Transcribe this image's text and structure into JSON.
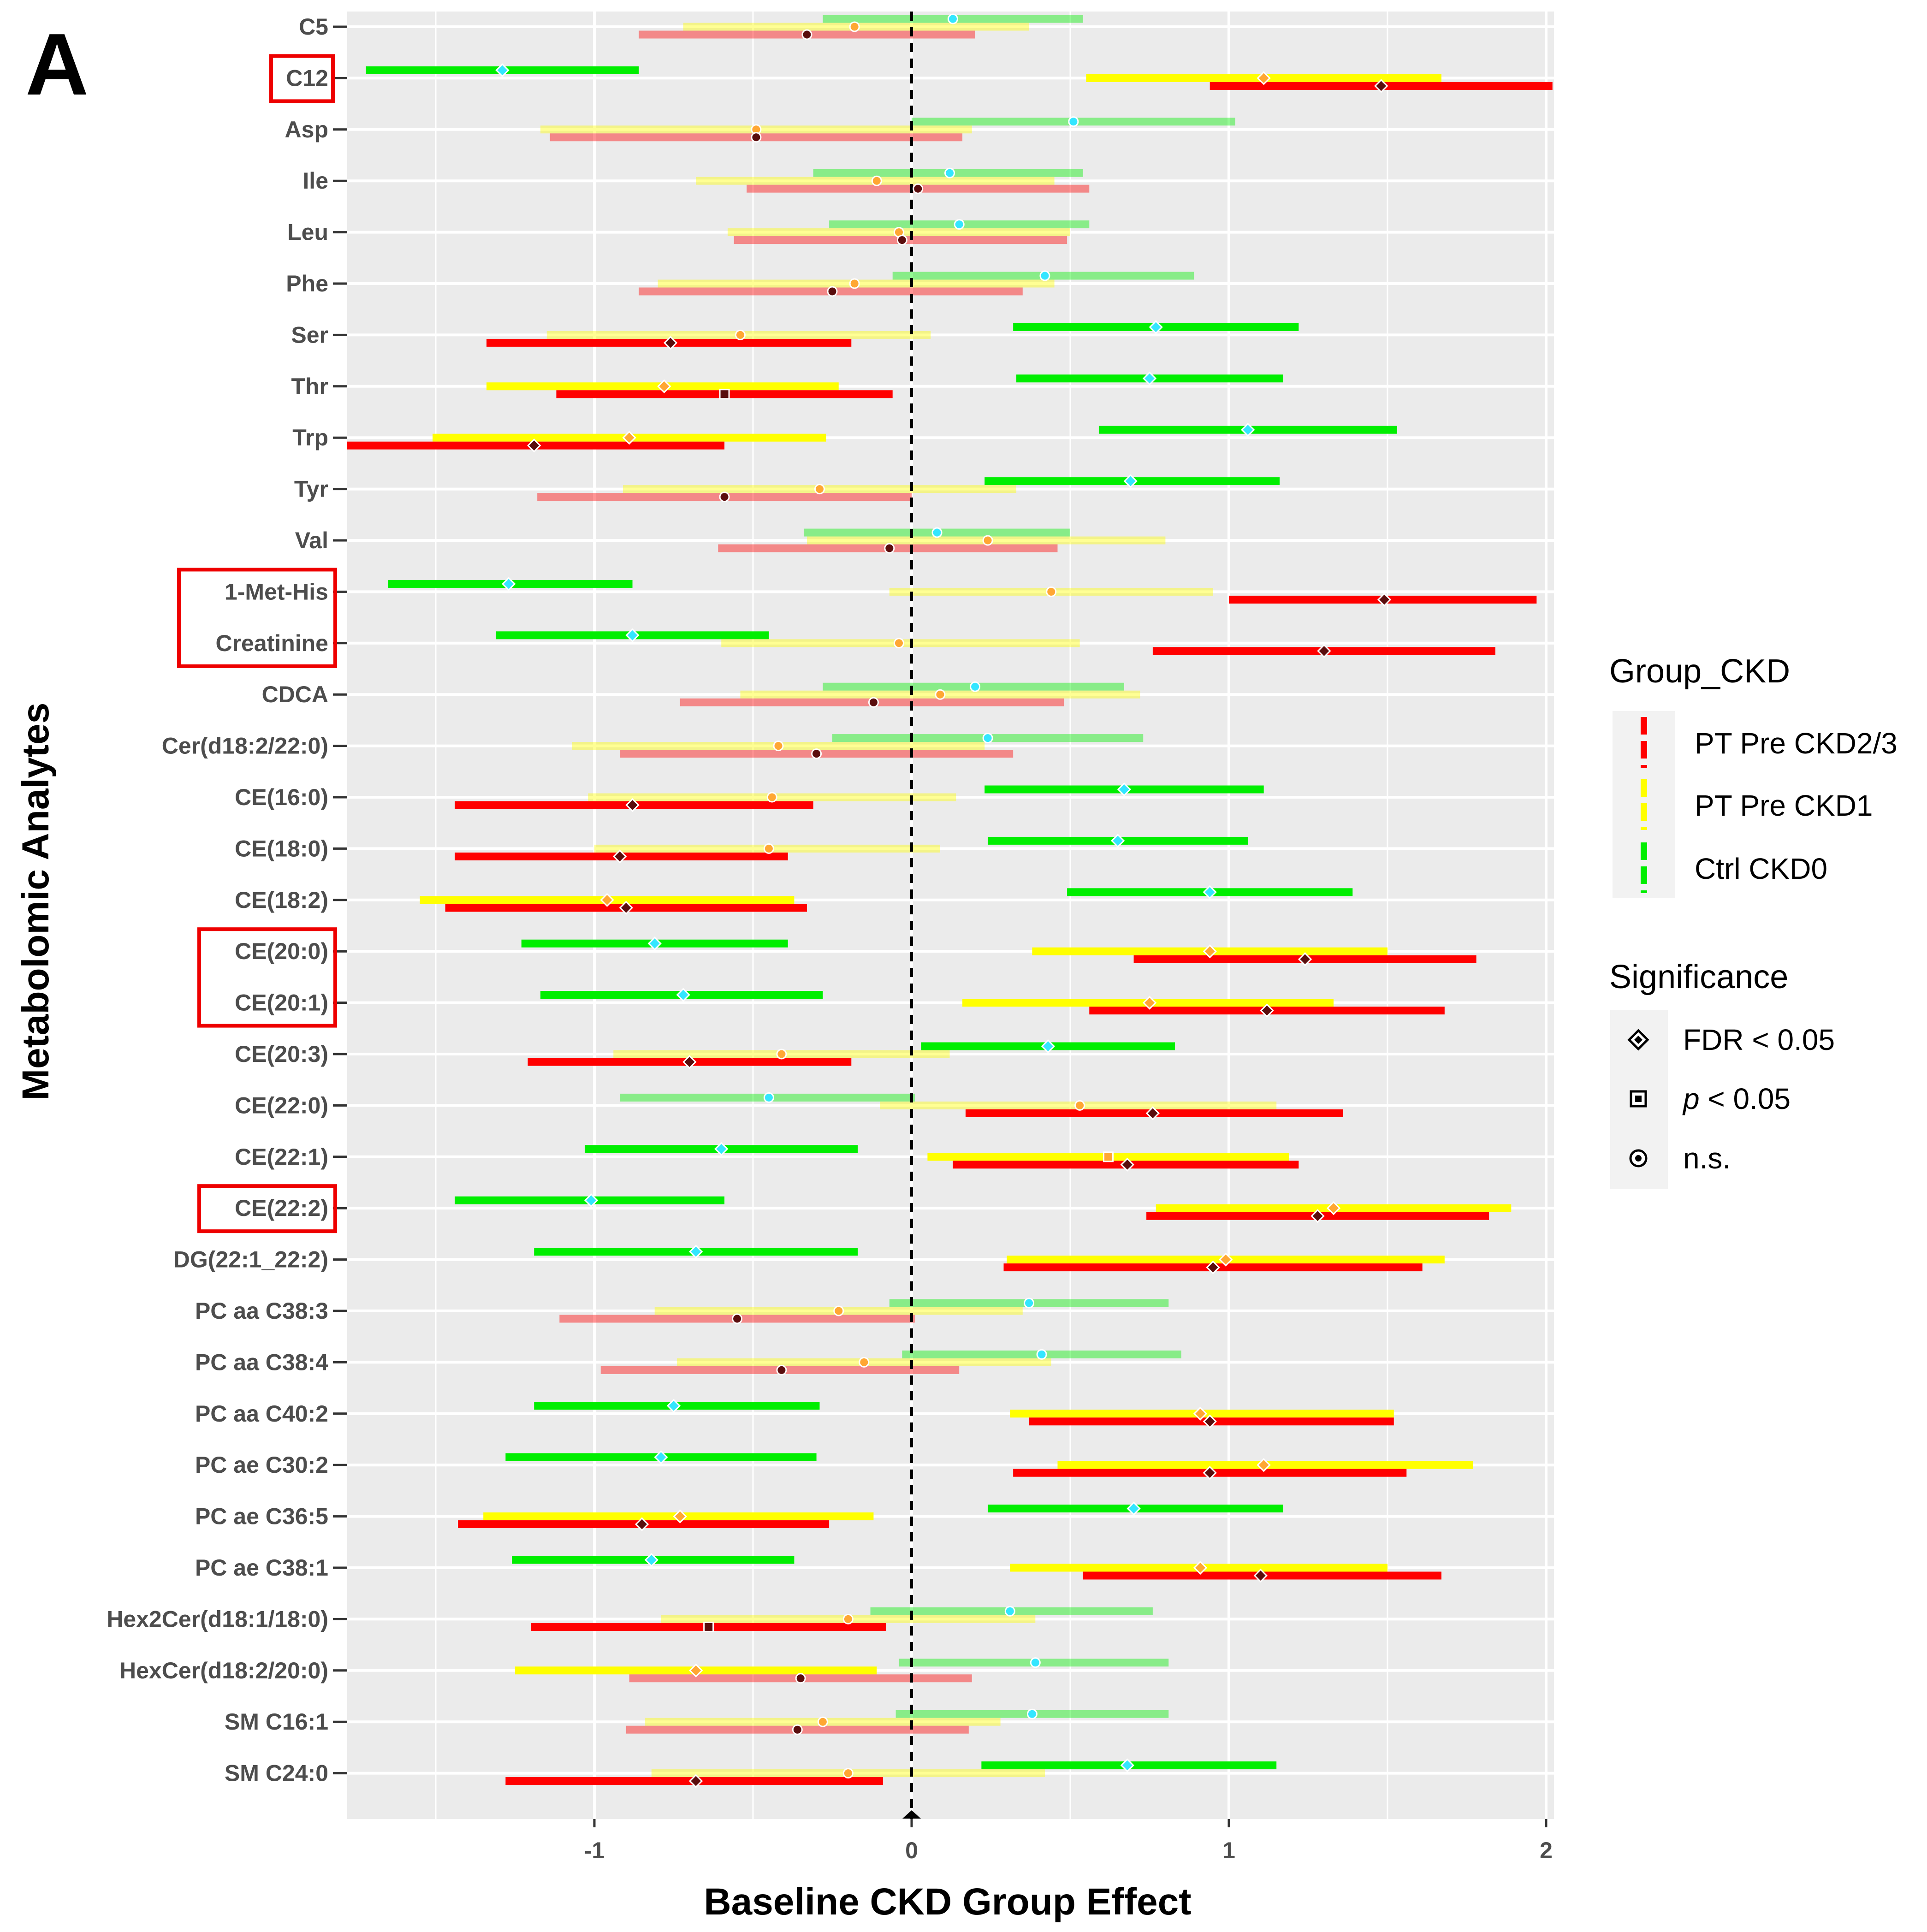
{
  "panel_label": "A",
  "colors": {
    "panel_bg": "#ebebeb",
    "grid": "#ffffff",
    "zero_line": "#000000",
    "highlight_box": "#ee0000",
    "legend_key_bg": "#f2f2f2"
  },
  "legend": {
    "group_title": "Group_CKD",
    "groups": [
      {
        "name": "PT Pre CKD2/3",
        "color": "#ff0000",
        "key": "ckd23"
      },
      {
        "name": "PT Pre CKD1",
        "color": "#ffff00",
        "key": "ckd1"
      },
      {
        "name": "Ctrl CKD0",
        "color": "#00ee00",
        "key": "ctrl"
      }
    ],
    "sig_title": "Significance",
    "sig_levels": [
      {
        "label": "FDR < 0.05",
        "shape": "diamond-icon"
      },
      {
        "label_italic": "p",
        "label_rest": " < 0.05",
        "shape": "square-icon"
      },
      {
        "label": "n.s.",
        "shape": "circle-icon"
      }
    ]
  },
  "chart_data": {
    "type": "forest",
    "title": "",
    "xlabel": "Baseline CKD Group Effect",
    "ylabel": "Metabolomic Analytes",
    "xlim": [
      -1.78,
      2.02
    ],
    "xticks": [
      -1,
      0,
      1,
      2
    ],
    "xtick_labels": [
      "-1",
      "0",
      "1",
      "2"
    ],
    "reference_line": 0,
    "highlighted_groups": [
      [
        "C12"
      ],
      [
        "1-Met-His",
        "Creatinine"
      ],
      [
        "CE(20:0)",
        "CE(20:1)"
      ],
      [
        "CE(22:2)"
      ]
    ],
    "analytes": [
      {
        "name": "C5",
        "ctrl": {
          "est": 0.13,
          "lo": -0.28,
          "hi": 0.54,
          "sig": "ns"
        },
        "ckd1": {
          "est": -0.18,
          "lo": -0.72,
          "hi": 0.37,
          "sig": "ns"
        },
        "ckd23": {
          "est": -0.33,
          "lo": -0.86,
          "hi": 0.2,
          "sig": "ns"
        }
      },
      {
        "name": "C12",
        "ctrl": {
          "est": -1.29,
          "lo": -1.72,
          "hi": -0.86,
          "sig": "fdr"
        },
        "ckd1": {
          "est": 1.11,
          "lo": 0.55,
          "hi": 1.67,
          "sig": "fdr"
        },
        "ckd23": {
          "est": 1.48,
          "lo": 0.94,
          "hi": 2.02,
          "sig": "fdr"
        }
      },
      {
        "name": "Asp",
        "ctrl": {
          "est": 0.51,
          "lo": 0.0,
          "hi": 1.02,
          "sig": "ns"
        },
        "ckd1": {
          "est": -0.49,
          "lo": -1.17,
          "hi": 0.19,
          "sig": "ns"
        },
        "ckd23": {
          "est": -0.49,
          "lo": -1.14,
          "hi": 0.16,
          "sig": "ns"
        }
      },
      {
        "name": "Ile",
        "ctrl": {
          "est": 0.12,
          "lo": -0.31,
          "hi": 0.54,
          "sig": "ns"
        },
        "ckd1": {
          "est": -0.11,
          "lo": -0.68,
          "hi": 0.45,
          "sig": "ns"
        },
        "ckd23": {
          "est": 0.02,
          "lo": -0.52,
          "hi": 0.56,
          "sig": "ns"
        }
      },
      {
        "name": "Leu",
        "ctrl": {
          "est": 0.15,
          "lo": -0.26,
          "hi": 0.56,
          "sig": "ns"
        },
        "ckd1": {
          "est": -0.04,
          "lo": -0.58,
          "hi": 0.5,
          "sig": "ns"
        },
        "ckd23": {
          "est": -0.03,
          "lo": -0.56,
          "hi": 0.49,
          "sig": "ns"
        }
      },
      {
        "name": "Phe",
        "ctrl": {
          "est": 0.42,
          "lo": -0.06,
          "hi": 0.89,
          "sig": "ns"
        },
        "ckd1": {
          "est": -0.18,
          "lo": -0.8,
          "hi": 0.45,
          "sig": "ns"
        },
        "ckd23": {
          "est": -0.25,
          "lo": -0.86,
          "hi": 0.35,
          "sig": "ns"
        }
      },
      {
        "name": "Ser",
        "ctrl": {
          "est": 0.77,
          "lo": 0.32,
          "hi": 1.22,
          "sig": "fdr"
        },
        "ckd1": {
          "est": -0.54,
          "lo": -1.15,
          "hi": 0.06,
          "sig": "ns"
        },
        "ckd23": {
          "est": -0.76,
          "lo": -1.34,
          "hi": -0.19,
          "sig": "fdr"
        }
      },
      {
        "name": "Thr",
        "ctrl": {
          "est": 0.75,
          "lo": 0.33,
          "hi": 1.17,
          "sig": "fdr"
        },
        "ckd1": {
          "est": -0.78,
          "lo": -1.34,
          "hi": -0.23,
          "sig": "fdr"
        },
        "ckd23": {
          "est": -0.59,
          "lo": -1.12,
          "hi": -0.06,
          "sig": "p"
        }
      },
      {
        "name": "Trp",
        "ctrl": {
          "est": 1.06,
          "lo": 0.59,
          "hi": 1.53,
          "sig": "fdr"
        },
        "ckd1": {
          "est": -0.89,
          "lo": -1.51,
          "hi": -0.27,
          "sig": "fdr"
        },
        "ckd23": {
          "est": -1.19,
          "lo": -1.78,
          "hi": -0.59,
          "sig": "fdr"
        }
      },
      {
        "name": "Tyr",
        "ctrl": {
          "est": 0.69,
          "lo": 0.23,
          "hi": 1.16,
          "sig": "fdr"
        },
        "ckd1": {
          "est": -0.29,
          "lo": -0.91,
          "hi": 0.33,
          "sig": "ns"
        },
        "ckd23": {
          "est": -0.59,
          "lo": -1.18,
          "hi": 0.0,
          "sig": "ns"
        }
      },
      {
        "name": "Val",
        "ctrl": {
          "est": 0.08,
          "lo": -0.34,
          "hi": 0.5,
          "sig": "ns"
        },
        "ckd1": {
          "est": 0.24,
          "lo": -0.33,
          "hi": 0.8,
          "sig": "ns"
        },
        "ckd23": {
          "est": -0.07,
          "lo": -0.61,
          "hi": 0.46,
          "sig": "ns"
        }
      },
      {
        "name": "1-Met-His",
        "ctrl": {
          "est": -1.27,
          "lo": -1.65,
          "hi": -0.88,
          "sig": "fdr"
        },
        "ckd1": {
          "est": 0.44,
          "lo": -0.07,
          "hi": 0.95,
          "sig": "ns"
        },
        "ckd23": {
          "est": 1.49,
          "lo": 1.0,
          "hi": 1.97,
          "sig": "fdr"
        }
      },
      {
        "name": "Creatinine",
        "ctrl": {
          "est": -0.88,
          "lo": -1.31,
          "hi": -0.45,
          "sig": "fdr"
        },
        "ckd1": {
          "est": -0.04,
          "lo": -0.6,
          "hi": 0.53,
          "sig": "ns"
        },
        "ckd23": {
          "est": 1.3,
          "lo": 0.76,
          "hi": 1.84,
          "sig": "fdr"
        }
      },
      {
        "name": "CDCA",
        "ctrl": {
          "est": 0.2,
          "lo": -0.28,
          "hi": 0.67,
          "sig": "ns"
        },
        "ckd1": {
          "est": 0.09,
          "lo": -0.54,
          "hi": 0.72,
          "sig": "ns"
        },
        "ckd23": {
          "est": -0.12,
          "lo": -0.73,
          "hi": 0.48,
          "sig": "ns"
        }
      },
      {
        "name": "Cer(d18:2/22:0)",
        "ctrl": {
          "est": 0.24,
          "lo": -0.25,
          "hi": 0.73,
          "sig": "ns"
        },
        "ckd1": {
          "est": -0.42,
          "lo": -1.07,
          "hi": 0.23,
          "sig": "ns"
        },
        "ckd23": {
          "est": -0.3,
          "lo": -0.92,
          "hi": 0.32,
          "sig": "ns"
        }
      },
      {
        "name": "CE(16:0)",
        "ctrl": {
          "est": 0.67,
          "lo": 0.23,
          "hi": 1.11,
          "sig": "fdr"
        },
        "ckd1": {
          "est": -0.44,
          "lo": -1.02,
          "hi": 0.14,
          "sig": "ns"
        },
        "ckd23": {
          "est": -0.88,
          "lo": -1.44,
          "hi": -0.31,
          "sig": "fdr"
        }
      },
      {
        "name": "CE(18:0)",
        "ctrl": {
          "est": 0.65,
          "lo": 0.24,
          "hi": 1.06,
          "sig": "fdr"
        },
        "ckd1": {
          "est": -0.45,
          "lo": -1.0,
          "hi": 0.09,
          "sig": "ns"
        },
        "ckd23": {
          "est": -0.92,
          "lo": -1.44,
          "hi": -0.39,
          "sig": "fdr"
        }
      },
      {
        "name": "CE(18:2)",
        "ctrl": {
          "est": 0.94,
          "lo": 0.49,
          "hi": 1.39,
          "sig": "fdr"
        },
        "ckd1": {
          "est": -0.96,
          "lo": -1.55,
          "hi": -0.37,
          "sig": "fdr"
        },
        "ckd23": {
          "est": -0.9,
          "lo": -1.47,
          "hi": -0.33,
          "sig": "fdr"
        }
      },
      {
        "name": "CE(20:0)",
        "ctrl": {
          "est": -0.81,
          "lo": -1.23,
          "hi": -0.39,
          "sig": "fdr"
        },
        "ckd1": {
          "est": 0.94,
          "lo": 0.38,
          "hi": 1.5,
          "sig": "fdr"
        },
        "ckd23": {
          "est": 1.24,
          "lo": 0.7,
          "hi": 1.78,
          "sig": "fdr"
        }
      },
      {
        "name": "CE(20:1)",
        "ctrl": {
          "est": -0.72,
          "lo": -1.17,
          "hi": -0.28,
          "sig": "fdr"
        },
        "ckd1": {
          "est": 0.75,
          "lo": 0.16,
          "hi": 1.33,
          "sig": "fdr"
        },
        "ckd23": {
          "est": 1.12,
          "lo": 0.56,
          "hi": 1.68,
          "sig": "fdr"
        }
      },
      {
        "name": "CE(20:3)",
        "ctrl": {
          "est": 0.43,
          "lo": 0.03,
          "hi": 0.83,
          "sig": "fdr"
        },
        "ckd1": {
          "est": -0.41,
          "lo": -0.94,
          "hi": 0.12,
          "sig": "ns"
        },
        "ckd23": {
          "est": -0.7,
          "lo": -1.21,
          "hi": -0.19,
          "sig": "fdr"
        }
      },
      {
        "name": "CE(22:0)",
        "ctrl": {
          "est": -0.45,
          "lo": -0.92,
          "hi": 0.01,
          "sig": "ns"
        },
        "ckd1": {
          "est": 0.53,
          "lo": -0.1,
          "hi": 1.15,
          "sig": "ns"
        },
        "ckd23": {
          "est": 0.76,
          "lo": 0.17,
          "hi": 1.36,
          "sig": "fdr"
        }
      },
      {
        "name": "CE(22:1)",
        "ctrl": {
          "est": -0.6,
          "lo": -1.03,
          "hi": -0.17,
          "sig": "fdr"
        },
        "ckd1": {
          "est": 0.62,
          "lo": 0.05,
          "hi": 1.19,
          "sig": "p"
        },
        "ckd23": {
          "est": 0.68,
          "lo": 0.13,
          "hi": 1.22,
          "sig": "fdr"
        }
      },
      {
        "name": "CE(22:2)",
        "ctrl": {
          "est": -1.01,
          "lo": -1.44,
          "hi": -0.59,
          "sig": "fdr"
        },
        "ckd1": {
          "est": 1.33,
          "lo": 0.77,
          "hi": 1.89,
          "sig": "fdr"
        },
        "ckd23": {
          "est": 1.28,
          "lo": 0.74,
          "hi": 1.82,
          "sig": "fdr"
        }
      },
      {
        "name": "DG(22:1_22:2)",
        "ctrl": {
          "est": -0.68,
          "lo": -1.19,
          "hi": -0.17,
          "sig": "fdr"
        },
        "ckd1": {
          "est": 0.99,
          "lo": 0.3,
          "hi": 1.68,
          "sig": "fdr"
        },
        "ckd23": {
          "est": 0.95,
          "lo": 0.29,
          "hi": 1.61,
          "sig": "fdr"
        }
      },
      {
        "name": "PC aa C38:3",
        "ctrl": {
          "est": 0.37,
          "lo": -0.07,
          "hi": 0.81,
          "sig": "ns"
        },
        "ckd1": {
          "est": -0.23,
          "lo": -0.81,
          "hi": 0.35,
          "sig": "ns"
        },
        "ckd23": {
          "est": -0.55,
          "lo": -1.11,
          "hi": 0.01,
          "sig": "ns"
        }
      },
      {
        "name": "PC aa C38:4",
        "ctrl": {
          "est": 0.41,
          "lo": -0.03,
          "hi": 0.85,
          "sig": "ns"
        },
        "ckd1": {
          "est": -0.15,
          "lo": -0.74,
          "hi": 0.44,
          "sig": "ns"
        },
        "ckd23": {
          "est": -0.41,
          "lo": -0.98,
          "hi": 0.15,
          "sig": "ns"
        }
      },
      {
        "name": "PC aa C40:2",
        "ctrl": {
          "est": -0.75,
          "lo": -1.19,
          "hi": -0.29,
          "sig": "fdr"
        },
        "ckd1": {
          "est": 0.91,
          "lo": 0.31,
          "hi": 1.52,
          "sig": "fdr"
        },
        "ckd23": {
          "est": 0.94,
          "lo": 0.37,
          "hi": 1.52,
          "sig": "fdr"
        }
      },
      {
        "name": "PC ae C30:2",
        "ctrl": {
          "est": -0.79,
          "lo": -1.28,
          "hi": -0.3,
          "sig": "fdr"
        },
        "ckd1": {
          "est": 1.11,
          "lo": 0.46,
          "hi": 1.77,
          "sig": "fdr"
        },
        "ckd23": {
          "est": 0.94,
          "lo": 0.32,
          "hi": 1.56,
          "sig": "fdr"
        }
      },
      {
        "name": "PC ae C36:5",
        "ctrl": {
          "est": 0.7,
          "lo": 0.24,
          "hi": 1.17,
          "sig": "fdr"
        },
        "ckd1": {
          "est": -0.73,
          "lo": -1.35,
          "hi": -0.12,
          "sig": "fdr"
        },
        "ckd23": {
          "est": -0.85,
          "lo": -1.43,
          "hi": -0.26,
          "sig": "fdr"
        }
      },
      {
        "name": "PC ae C38:1",
        "ctrl": {
          "est": -0.82,
          "lo": -1.26,
          "hi": -0.37,
          "sig": "fdr"
        },
        "ckd1": {
          "est": 0.91,
          "lo": 0.31,
          "hi": 1.5,
          "sig": "fdr"
        },
        "ckd23": {
          "est": 1.1,
          "lo": 0.54,
          "hi": 1.67,
          "sig": "fdr"
        }
      },
      {
        "name": "Hex2Cer(d18:1/18:0)",
        "ctrl": {
          "est": 0.31,
          "lo": -0.13,
          "hi": 0.76,
          "sig": "ns"
        },
        "ckd1": {
          "est": -0.2,
          "lo": -0.79,
          "hi": 0.39,
          "sig": "ns"
        },
        "ckd23": {
          "est": -0.64,
          "lo": -1.2,
          "hi": -0.08,
          "sig": "p"
        }
      },
      {
        "name": "HexCer(d18:2/20:0)",
        "ctrl": {
          "est": 0.39,
          "lo": -0.04,
          "hi": 0.81,
          "sig": "ns"
        },
        "ckd1": {
          "est": -0.68,
          "lo": -1.25,
          "hi": -0.11,
          "sig": "fdr"
        },
        "ckd23": {
          "est": -0.35,
          "lo": -0.89,
          "hi": 0.19,
          "sig": "ns"
        }
      },
      {
        "name": "SM C16:1",
        "ctrl": {
          "est": 0.38,
          "lo": -0.05,
          "hi": 0.81,
          "sig": "ns"
        },
        "ckd1": {
          "est": -0.28,
          "lo": -0.84,
          "hi": 0.28,
          "sig": "ns"
        },
        "ckd23": {
          "est": -0.36,
          "lo": -0.9,
          "hi": 0.18,
          "sig": "ns"
        }
      },
      {
        "name": "SM C24:0",
        "ctrl": {
          "est": 0.68,
          "lo": 0.22,
          "hi": 1.15,
          "sig": "fdr"
        },
        "ckd1": {
          "est": -0.2,
          "lo": -0.82,
          "hi": 0.42,
          "sig": "ns"
        },
        "ckd23": {
          "est": -0.68,
          "lo": -1.28,
          "hi": -0.09,
          "sig": "fdr"
        }
      }
    ]
  }
}
